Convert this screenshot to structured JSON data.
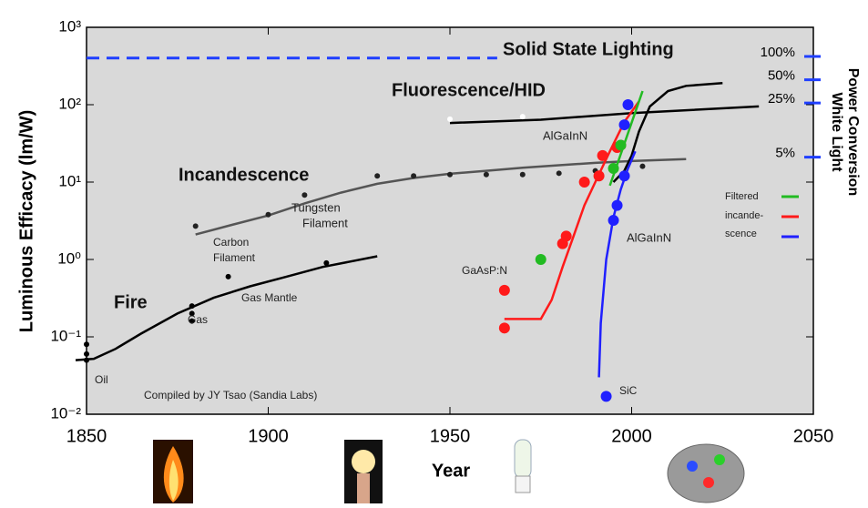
{
  "chart_data": {
    "type": "line",
    "x_label": "Year",
    "y_label": "Luminous Efficacy (lm/W)",
    "y2_label": [
      "White Light",
      "Power Conversion"
    ],
    "xlim": [
      1850,
      2050
    ],
    "xticks": [
      1850,
      1900,
      1950,
      2000,
      2050
    ],
    "ylim": [
      0.01,
      1000
    ],
    "log_y": true,
    "yticks": [
      {
        "value": 0.01,
        "label": "10⁻²"
      },
      {
        "value": 0.1,
        "label": "10⁻¹"
      },
      {
        "value": 1,
        "label": "10⁰"
      },
      {
        "value": 10,
        "label": "10¹"
      },
      {
        "value": 100,
        "label": "10²"
      },
      {
        "value": 1000,
        "label": "10³"
      }
    ],
    "y2lim": [
      0.00238,
      238
    ],
    "y2ticks": [
      {
        "value": 100,
        "label": "100%"
      },
      {
        "value": 50,
        "label": "50%"
      },
      {
        "value": 25,
        "label": "25%"
      },
      {
        "value": 5,
        "label": "5%"
      }
    ],
    "y2_tick_color": "#1f3fff",
    "background": "#d9d9d9",
    "series": [
      {
        "name": "Solid State Lighting",
        "color": "#1f3fff",
        "style": "dashed",
        "x": [
          1850,
          1963
        ],
        "values": [
          400,
          400
        ]
      },
      {
        "name": "Fluorescence/HID",
        "color": "#000000",
        "style": "line",
        "x": [
          1950,
          1975,
          2000,
          2035
        ],
        "values": [
          58,
          64,
          78,
          95
        ]
      },
      {
        "color": "#ffffff",
        "style": "points",
        "x": [
          1950,
          1970
        ],
        "values": [
          65,
          70
        ]
      },
      {
        "name": "Incandescence",
        "color": "#555555",
        "style": "line",
        "x": [
          1880,
          1890,
          1900,
          1910,
          1920,
          1930,
          1940,
          1950,
          1960,
          1970,
          1980,
          1990,
          2000,
          2015
        ],
        "values": [
          2.1,
          2.8,
          3.7,
          5.3,
          7.3,
          9.5,
          11.3,
          12.8,
          14,
          15.3,
          16.5,
          17.7,
          18.7,
          19.8
        ]
      },
      {
        "color": "#222222",
        "style": "points",
        "x": [
          1880,
          1900,
          1910,
          1930,
          1940,
          1950,
          1960,
          1970,
          1980,
          1990,
          2003
        ],
        "values": [
          2.7,
          3.8,
          6.8,
          12,
          12,
          12.5,
          12.5,
          12.5,
          13,
          14,
          16
        ]
      },
      {
        "name": "Fire",
        "color": "#000000",
        "style": "line",
        "x": [
          1847,
          1852,
          1858,
          1865,
          1875,
          1885,
          1895,
          1905,
          1915,
          1930
        ],
        "values": [
          0.05,
          0.052,
          0.07,
          0.11,
          0.2,
          0.32,
          0.45,
          0.6,
          0.8,
          1.1
        ]
      },
      {
        "color": "#000000",
        "style": "points",
        "x": [
          1850,
          1850,
          1850,
          1879,
          1879,
          1879,
          1889,
          1916
        ],
        "values": [
          0.05,
          0.06,
          0.08,
          0.16,
          0.2,
          0.25,
          0.6,
          0.9
        ]
      },
      {
        "color": "#000000",
        "style": "line",
        "x": [
          1995,
          1998,
          2000,
          2002,
          2005,
          2010,
          2015,
          2025
        ],
        "values": [
          10,
          14,
          22,
          45,
          95,
          150,
          175,
          190
        ]
      },
      {
        "color": "#ff1a1a",
        "style": "line",
        "x": [
          1965,
          1975,
          1978,
          1981,
          1984,
          1987,
          1990,
          1994,
          1998,
          2002
        ],
        "values": [
          0.17,
          0.17,
          0.3,
          0.8,
          2,
          5,
          10,
          25,
          60,
          110
        ]
      },
      {
        "color": "#ff1a1a",
        "style": "points",
        "x": [
          1965,
          1965,
          1981,
          1982,
          1987,
          1991,
          1992,
          1996,
          1997
        ],
        "values": [
          0.13,
          0.4,
          1.6,
          2,
          10,
          12,
          22,
          28,
          30
        ]
      },
      {
        "color": "#22bb22",
        "style": "line",
        "x": [
          1994,
          2003
        ],
        "values": [
          9,
          150
        ]
      },
      {
        "color": "#22bb22",
        "style": "points",
        "x": [
          1975,
          1995,
          1997
        ],
        "values": [
          1,
          15,
          30
        ]
      },
      {
        "color": "#2020ff",
        "style": "line",
        "x": [
          1991,
          1991.5,
          1993,
          1995,
          1997,
          1999,
          2001
        ],
        "values": [
          0.03,
          0.15,
          1,
          3.5,
          8,
          15,
          25
        ]
      },
      {
        "color": "#2020ff",
        "style": "points",
        "x": [
          1993,
          1995,
          1996,
          1998,
          1998,
          1999
        ],
        "values": [
          0.017,
          3.2,
          5,
          12,
          55,
          100
        ]
      }
    ],
    "annotations": [
      "Tungsten",
      "Filament",
      "Carbon",
      "Filament",
      "Gas Mantle",
      "Gas",
      "Oil",
      "Compiled by JY Tsao (Sandia Labs)",
      "AlGaInN",
      "AlGaInN",
      "GaAsP:N",
      "SiC",
      "Filtered",
      "incande-",
      "scence"
    ]
  }
}
